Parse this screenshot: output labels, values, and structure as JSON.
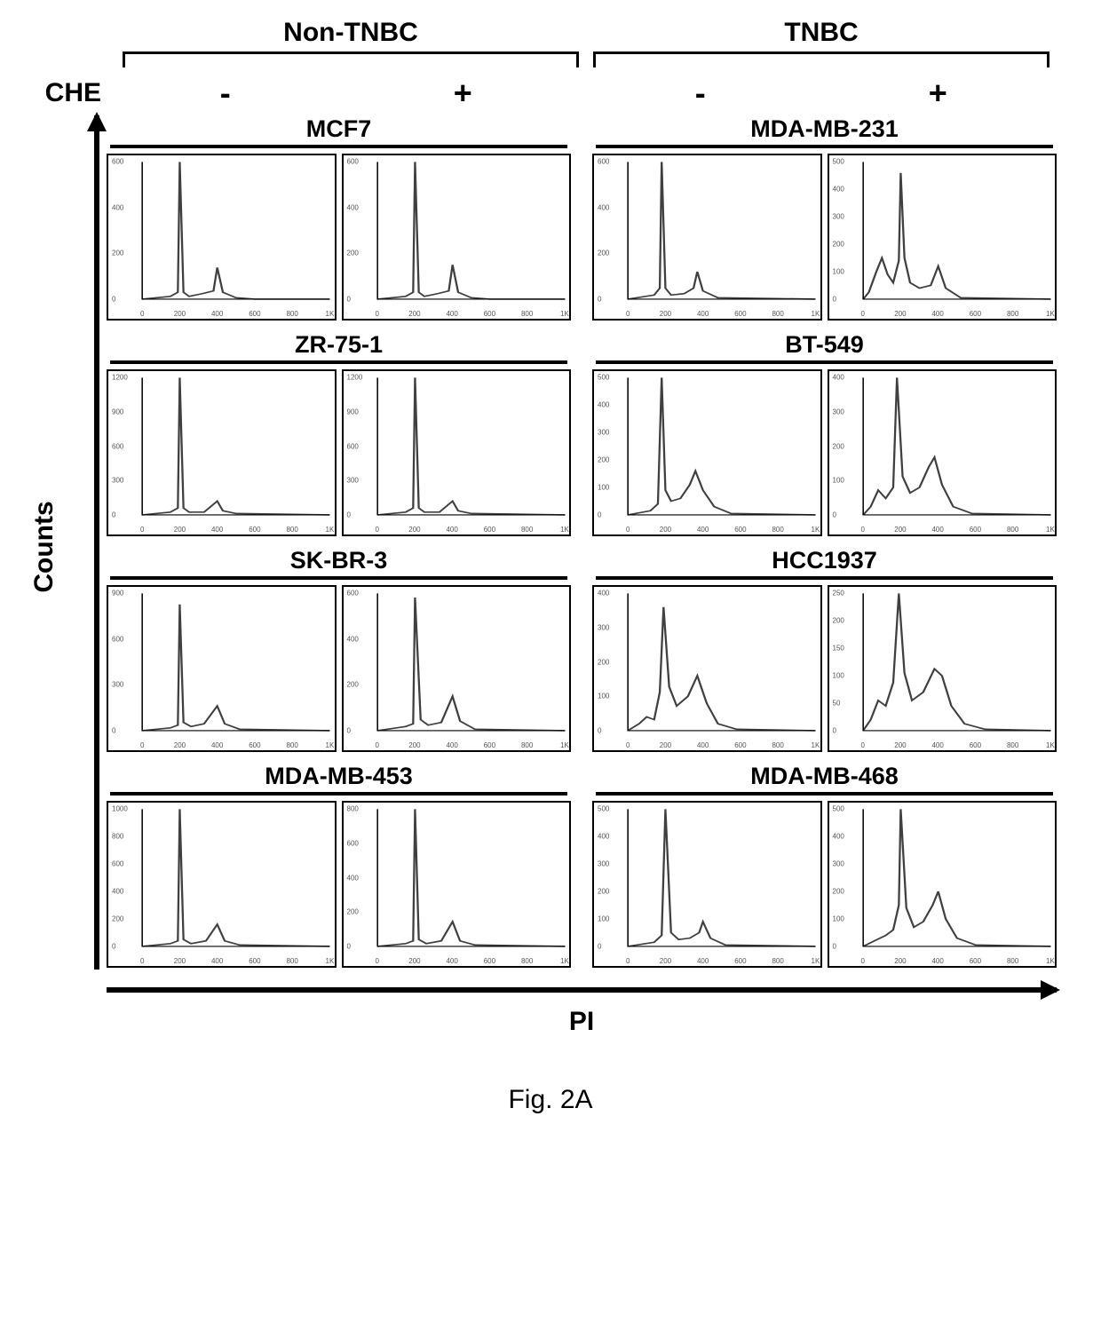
{
  "figure_caption": "Fig. 2A",
  "che_label": "CHE",
  "y_axis_label": "Counts",
  "x_axis_label": "PI",
  "signs": [
    "-",
    "+"
  ],
  "groups": [
    {
      "label": "Non-TNBC"
    },
    {
      "label": "TNBC"
    }
  ],
  "colors": {
    "background": "#ffffff",
    "axis": "#000000",
    "border": "#000000",
    "curve": "#404040",
    "ticktext": "#555555"
  },
  "x_ticks": [
    {
      "pos": 0.0,
      "label": "0"
    },
    {
      "pos": 0.2,
      "label": "200"
    },
    {
      "pos": 0.4,
      "label": "400"
    },
    {
      "pos": 0.6,
      "label": "600"
    },
    {
      "pos": 0.8,
      "label": "800"
    },
    {
      "pos": 1.0,
      "label": "1K"
    }
  ],
  "rows": [
    {
      "left": {
        "title": "MCF7",
        "minus": {
          "ymax": 600,
          "ystep": 200,
          "points": [
            {
              "x": 0.0,
              "y": 0.0
            },
            {
              "x": 0.15,
              "y": 0.02
            },
            {
              "x": 0.19,
              "y": 0.05
            },
            {
              "x": 0.2,
              "y": 1.0
            },
            {
              "x": 0.22,
              "y": 0.05
            },
            {
              "x": 0.25,
              "y": 0.02
            },
            {
              "x": 0.32,
              "y": 0.04
            },
            {
              "x": 0.38,
              "y": 0.06
            },
            {
              "x": 0.4,
              "y": 0.23
            },
            {
              "x": 0.43,
              "y": 0.05
            },
            {
              "x": 0.5,
              "y": 0.01
            },
            {
              "x": 0.6,
              "y": 0.0
            },
            {
              "x": 1.0,
              "y": 0.0
            }
          ]
        },
        "plus": {
          "ymax": 600,
          "ystep": 200,
          "points": [
            {
              "x": 0.0,
              "y": 0.0
            },
            {
              "x": 0.15,
              "y": 0.02
            },
            {
              "x": 0.19,
              "y": 0.05
            },
            {
              "x": 0.2,
              "y": 1.0
            },
            {
              "x": 0.22,
              "y": 0.05
            },
            {
              "x": 0.25,
              "y": 0.02
            },
            {
              "x": 0.32,
              "y": 0.04
            },
            {
              "x": 0.38,
              "y": 0.06
            },
            {
              "x": 0.4,
              "y": 0.25
            },
            {
              "x": 0.43,
              "y": 0.05
            },
            {
              "x": 0.5,
              "y": 0.01
            },
            {
              "x": 0.6,
              "y": 0.0
            },
            {
              "x": 1.0,
              "y": 0.0
            }
          ]
        }
      },
      "right": {
        "title": "MDA-MB-231",
        "minus": {
          "ymax": 600,
          "ystep": 200,
          "points": [
            {
              "x": 0.0,
              "y": 0.0
            },
            {
              "x": 0.14,
              "y": 0.03
            },
            {
              "x": 0.17,
              "y": 0.08
            },
            {
              "x": 0.18,
              "y": 1.0
            },
            {
              "x": 0.2,
              "y": 0.08
            },
            {
              "x": 0.23,
              "y": 0.03
            },
            {
              "x": 0.3,
              "y": 0.04
            },
            {
              "x": 0.35,
              "y": 0.08
            },
            {
              "x": 0.37,
              "y": 0.2
            },
            {
              "x": 0.4,
              "y": 0.06
            },
            {
              "x": 0.48,
              "y": 0.01
            },
            {
              "x": 1.0,
              "y": 0.0
            }
          ]
        },
        "plus": {
          "ymax": 500,
          "ystep": 100,
          "points": [
            {
              "x": 0.0,
              "y": 0.0
            },
            {
              "x": 0.03,
              "y": 0.05
            },
            {
              "x": 0.07,
              "y": 0.2
            },
            {
              "x": 0.1,
              "y": 0.3
            },
            {
              "x": 0.13,
              "y": 0.18
            },
            {
              "x": 0.16,
              "y": 0.12
            },
            {
              "x": 0.19,
              "y": 0.28
            },
            {
              "x": 0.2,
              "y": 0.92
            },
            {
              "x": 0.22,
              "y": 0.3
            },
            {
              "x": 0.25,
              "y": 0.12
            },
            {
              "x": 0.3,
              "y": 0.08
            },
            {
              "x": 0.36,
              "y": 0.1
            },
            {
              "x": 0.4,
              "y": 0.24
            },
            {
              "x": 0.44,
              "y": 0.08
            },
            {
              "x": 0.52,
              "y": 0.01
            },
            {
              "x": 1.0,
              "y": 0.0
            }
          ]
        }
      }
    },
    {
      "left": {
        "title": "ZR-75-1",
        "minus": {
          "ymax": 1200,
          "ystep": 300,
          "points": [
            {
              "x": 0.0,
              "y": 0.0
            },
            {
              "x": 0.15,
              "y": 0.02
            },
            {
              "x": 0.19,
              "y": 0.05
            },
            {
              "x": 0.2,
              "y": 1.0
            },
            {
              "x": 0.22,
              "y": 0.05
            },
            {
              "x": 0.25,
              "y": 0.02
            },
            {
              "x": 0.33,
              "y": 0.02
            },
            {
              "x": 0.4,
              "y": 0.1
            },
            {
              "x": 0.43,
              "y": 0.03
            },
            {
              "x": 0.5,
              "y": 0.01
            },
            {
              "x": 1.0,
              "y": 0.0
            }
          ]
        },
        "plus": {
          "ymax": 1200,
          "ystep": 300,
          "points": [
            {
              "x": 0.0,
              "y": 0.0
            },
            {
              "x": 0.15,
              "y": 0.02
            },
            {
              "x": 0.19,
              "y": 0.05
            },
            {
              "x": 0.2,
              "y": 1.0
            },
            {
              "x": 0.22,
              "y": 0.05
            },
            {
              "x": 0.25,
              "y": 0.02
            },
            {
              "x": 0.33,
              "y": 0.02
            },
            {
              "x": 0.4,
              "y": 0.1
            },
            {
              "x": 0.43,
              "y": 0.03
            },
            {
              "x": 0.5,
              "y": 0.01
            },
            {
              "x": 1.0,
              "y": 0.0
            }
          ]
        }
      },
      "right": {
        "title": "BT-549",
        "minus": {
          "ymax": 500,
          "ystep": 100,
          "points": [
            {
              "x": 0.0,
              "y": 0.0
            },
            {
              "x": 0.12,
              "y": 0.03
            },
            {
              "x": 0.16,
              "y": 0.08
            },
            {
              "x": 0.18,
              "y": 1.0
            },
            {
              "x": 0.2,
              "y": 0.18
            },
            {
              "x": 0.23,
              "y": 0.1
            },
            {
              "x": 0.28,
              "y": 0.12
            },
            {
              "x": 0.33,
              "y": 0.22
            },
            {
              "x": 0.36,
              "y": 0.32
            },
            {
              "x": 0.4,
              "y": 0.18
            },
            {
              "x": 0.46,
              "y": 0.06
            },
            {
              "x": 0.55,
              "y": 0.01
            },
            {
              "x": 1.0,
              "y": 0.0
            }
          ]
        },
        "plus": {
          "ymax": 400,
          "ystep": 100,
          "points": [
            {
              "x": 0.0,
              "y": 0.0
            },
            {
              "x": 0.04,
              "y": 0.06
            },
            {
              "x": 0.08,
              "y": 0.18
            },
            {
              "x": 0.12,
              "y": 0.12
            },
            {
              "x": 0.16,
              "y": 0.2
            },
            {
              "x": 0.18,
              "y": 1.0
            },
            {
              "x": 0.21,
              "y": 0.28
            },
            {
              "x": 0.25,
              "y": 0.16
            },
            {
              "x": 0.3,
              "y": 0.2
            },
            {
              "x": 0.35,
              "y": 0.35
            },
            {
              "x": 0.38,
              "y": 0.42
            },
            {
              "x": 0.42,
              "y": 0.22
            },
            {
              "x": 0.48,
              "y": 0.06
            },
            {
              "x": 0.58,
              "y": 0.01
            },
            {
              "x": 1.0,
              "y": 0.0
            }
          ]
        }
      }
    },
    {
      "left": {
        "title": "SK-BR-3",
        "minus": {
          "ymax": 900,
          "ystep": 300,
          "points": [
            {
              "x": 0.0,
              "y": 0.0
            },
            {
              "x": 0.15,
              "y": 0.02
            },
            {
              "x": 0.19,
              "y": 0.04
            },
            {
              "x": 0.2,
              "y": 0.92
            },
            {
              "x": 0.22,
              "y": 0.06
            },
            {
              "x": 0.26,
              "y": 0.03
            },
            {
              "x": 0.33,
              "y": 0.05
            },
            {
              "x": 0.4,
              "y": 0.18
            },
            {
              "x": 0.44,
              "y": 0.05
            },
            {
              "x": 0.52,
              "y": 0.01
            },
            {
              "x": 1.0,
              "y": 0.0
            }
          ]
        },
        "plus": {
          "ymax": 600,
          "ystep": 200,
          "points": [
            {
              "x": 0.0,
              "y": 0.0
            },
            {
              "x": 0.15,
              "y": 0.03
            },
            {
              "x": 0.19,
              "y": 0.05
            },
            {
              "x": 0.2,
              "y": 0.97
            },
            {
              "x": 0.23,
              "y": 0.08
            },
            {
              "x": 0.27,
              "y": 0.04
            },
            {
              "x": 0.34,
              "y": 0.06
            },
            {
              "x": 0.4,
              "y": 0.25
            },
            {
              "x": 0.44,
              "y": 0.07
            },
            {
              "x": 0.52,
              "y": 0.01
            },
            {
              "x": 1.0,
              "y": 0.0
            }
          ]
        }
      },
      "right": {
        "title": "HCC1937",
        "minus": {
          "ymax": 400,
          "ystep": 100,
          "points": [
            {
              "x": 0.0,
              "y": 0.0
            },
            {
              "x": 0.06,
              "y": 0.05
            },
            {
              "x": 0.1,
              "y": 0.1
            },
            {
              "x": 0.14,
              "y": 0.08
            },
            {
              "x": 0.17,
              "y": 0.28
            },
            {
              "x": 0.19,
              "y": 0.9
            },
            {
              "x": 0.22,
              "y": 0.32
            },
            {
              "x": 0.26,
              "y": 0.18
            },
            {
              "x": 0.32,
              "y": 0.25
            },
            {
              "x": 0.37,
              "y": 0.4
            },
            {
              "x": 0.42,
              "y": 0.2
            },
            {
              "x": 0.48,
              "y": 0.05
            },
            {
              "x": 0.58,
              "y": 0.01
            },
            {
              "x": 1.0,
              "y": 0.0
            }
          ]
        },
        "plus": {
          "ymax": 250,
          "ystep": 50,
          "points": [
            {
              "x": 0.0,
              "y": 0.0
            },
            {
              "x": 0.04,
              "y": 0.08
            },
            {
              "x": 0.08,
              "y": 0.22
            },
            {
              "x": 0.12,
              "y": 0.18
            },
            {
              "x": 0.16,
              "y": 0.35
            },
            {
              "x": 0.19,
              "y": 1.0
            },
            {
              "x": 0.22,
              "y": 0.42
            },
            {
              "x": 0.26,
              "y": 0.22
            },
            {
              "x": 0.32,
              "y": 0.28
            },
            {
              "x": 0.38,
              "y": 0.45
            },
            {
              "x": 0.42,
              "y": 0.4
            },
            {
              "x": 0.47,
              "y": 0.18
            },
            {
              "x": 0.54,
              "y": 0.05
            },
            {
              "x": 0.65,
              "y": 0.01
            },
            {
              "x": 1.0,
              "y": 0.0
            }
          ]
        }
      }
    },
    {
      "left": {
        "title": "MDA-MB-453",
        "minus": {
          "ymax": 1000,
          "ystep": 200,
          "points": [
            {
              "x": 0.0,
              "y": 0.0
            },
            {
              "x": 0.15,
              "y": 0.02
            },
            {
              "x": 0.19,
              "y": 0.04
            },
            {
              "x": 0.2,
              "y": 1.0
            },
            {
              "x": 0.22,
              "y": 0.05
            },
            {
              "x": 0.26,
              "y": 0.02
            },
            {
              "x": 0.34,
              "y": 0.04
            },
            {
              "x": 0.4,
              "y": 0.16
            },
            {
              "x": 0.44,
              "y": 0.04
            },
            {
              "x": 0.52,
              "y": 0.01
            },
            {
              "x": 1.0,
              "y": 0.0
            }
          ]
        },
        "plus": {
          "ymax": 800,
          "ystep": 200,
          "points": [
            {
              "x": 0.0,
              "y": 0.0
            },
            {
              "x": 0.15,
              "y": 0.02
            },
            {
              "x": 0.19,
              "y": 0.04
            },
            {
              "x": 0.2,
              "y": 1.0
            },
            {
              "x": 0.22,
              "y": 0.05
            },
            {
              "x": 0.26,
              "y": 0.02
            },
            {
              "x": 0.34,
              "y": 0.04
            },
            {
              "x": 0.4,
              "y": 0.18
            },
            {
              "x": 0.44,
              "y": 0.04
            },
            {
              "x": 0.52,
              "y": 0.01
            },
            {
              "x": 1.0,
              "y": 0.0
            }
          ]
        }
      },
      "right": {
        "title": "MDA-MB-468",
        "minus": {
          "ymax": 500,
          "ystep": 100,
          "points": [
            {
              "x": 0.0,
              "y": 0.0
            },
            {
              "x": 0.14,
              "y": 0.03
            },
            {
              "x": 0.18,
              "y": 0.08
            },
            {
              "x": 0.2,
              "y": 1.0
            },
            {
              "x": 0.23,
              "y": 0.1
            },
            {
              "x": 0.27,
              "y": 0.05
            },
            {
              "x": 0.33,
              "y": 0.06
            },
            {
              "x": 0.38,
              "y": 0.1
            },
            {
              "x": 0.4,
              "y": 0.18
            },
            {
              "x": 0.44,
              "y": 0.06
            },
            {
              "x": 0.52,
              "y": 0.01
            },
            {
              "x": 1.0,
              "y": 0.0
            }
          ]
        },
        "plus": {
          "ymax": 500,
          "ystep": 100,
          "points": [
            {
              "x": 0.0,
              "y": 0.0
            },
            {
              "x": 0.06,
              "y": 0.04
            },
            {
              "x": 0.12,
              "y": 0.08
            },
            {
              "x": 0.16,
              "y": 0.12
            },
            {
              "x": 0.19,
              "y": 0.3
            },
            {
              "x": 0.2,
              "y": 1.0
            },
            {
              "x": 0.23,
              "y": 0.28
            },
            {
              "x": 0.27,
              "y": 0.14
            },
            {
              "x": 0.32,
              "y": 0.18
            },
            {
              "x": 0.37,
              "y": 0.3
            },
            {
              "x": 0.4,
              "y": 0.4
            },
            {
              "x": 0.44,
              "y": 0.2
            },
            {
              "x": 0.5,
              "y": 0.06
            },
            {
              "x": 0.6,
              "y": 0.01
            },
            {
              "x": 1.0,
              "y": 0.0
            }
          ]
        }
      }
    }
  ]
}
